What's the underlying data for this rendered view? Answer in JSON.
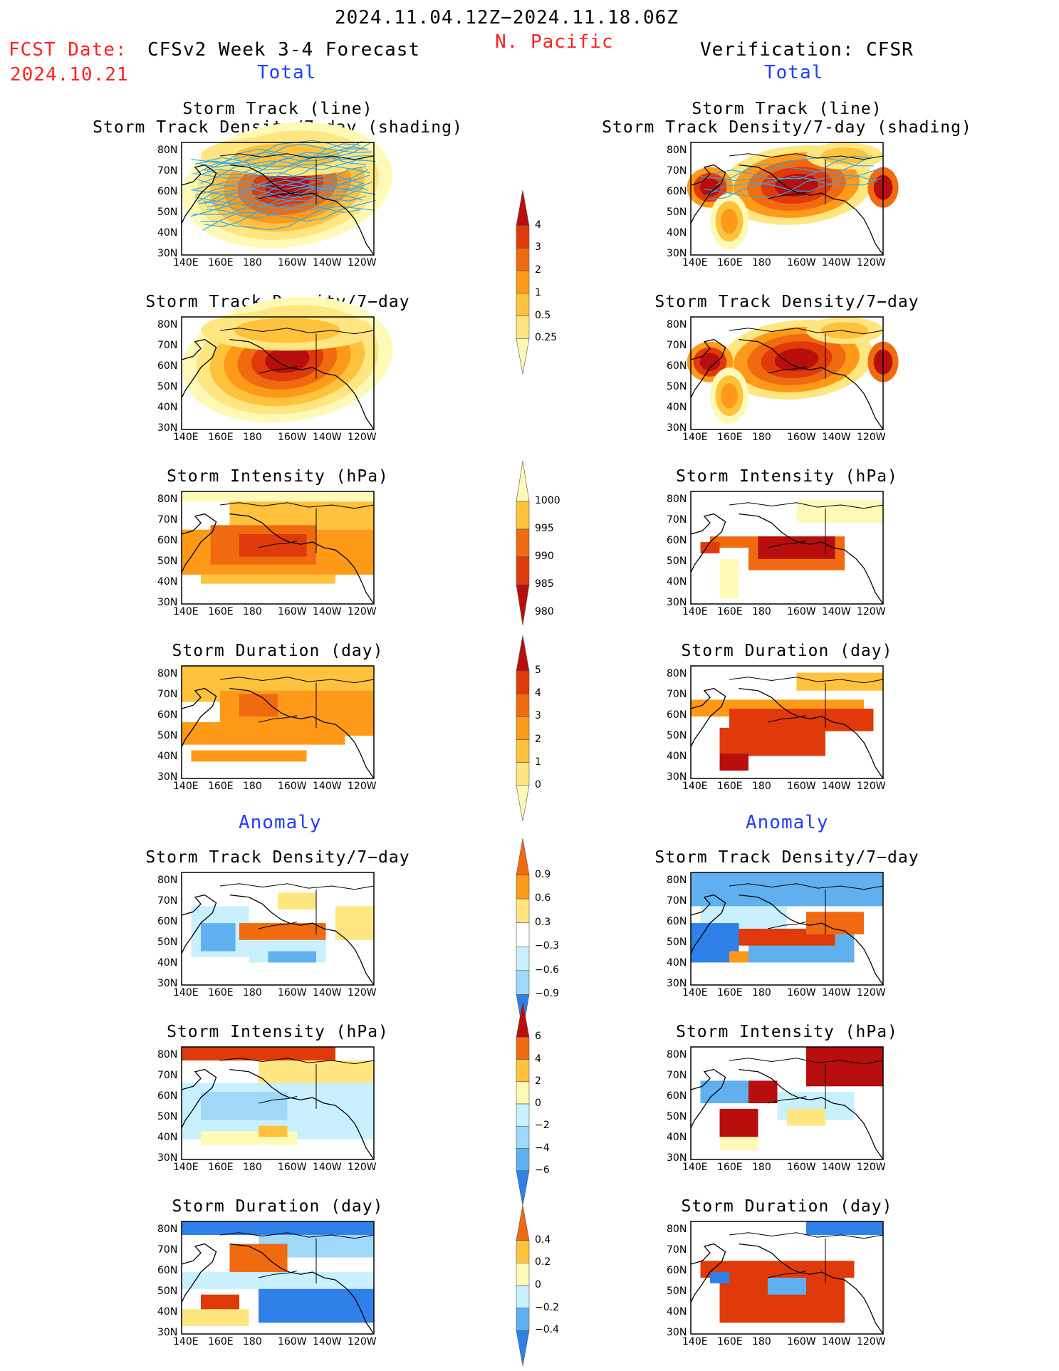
{
  "header": {
    "date_range": "2024.11.04.12Z−2024.11.18.06Z",
    "region": "N. Pacific",
    "fcst_label": "FCST Date:",
    "fcst_date": "2024.10.21",
    "left_title": "CFSv2 Week 3-4 Forecast",
    "right_title": "Verification: CFSR",
    "left_section_total": "Total",
    "right_section_total": "Total",
    "left_section_anomaly": "Anomaly",
    "right_section_anomaly": "Anomaly"
  },
  "panel_titles": {
    "track_line": "Storm Track (line)",
    "track_shading": "Storm Track Density/7-day (shading)",
    "density": "Storm Track Density/7−day",
    "intensity": "Storm Intensity (hPa)",
    "duration": "Storm Duration (day)"
  },
  "axes": {
    "lat_labels": [
      "80N",
      "70N",
      "60N",
      "50N",
      "40N",
      "30N"
    ],
    "lon_labels": [
      "140E",
      "160E",
      "180",
      "160W",
      "140W",
      "120W"
    ]
  },
  "colorbars": {
    "density_total": [
      "4",
      "3",
      "2",
      "1",
      "0.5",
      "0.25"
    ],
    "intensity_total": [
      "1000",
      "995",
      "990",
      "985",
      "980"
    ],
    "duration_total": [
      "5",
      "4",
      "3",
      "2",
      "1",
      "0"
    ],
    "density_anom": [
      "0.9",
      "0.6",
      "0.3",
      "−0.3",
      "−0.6",
      "−0.9"
    ],
    "intensity_anom": [
      "6",
      "4",
      "2",
      "0",
      "−2",
      "−4",
      "−6"
    ],
    "duration_anom": [
      "0.4",
      "0.2",
      "0",
      "−0.2",
      "−0.4"
    ]
  },
  "colors": {
    "warm": [
      "#fff9b8",
      "#ffe680",
      "#ffc23c",
      "#ff9a18",
      "#f06a10",
      "#e03a0a",
      "#b80e0e"
    ],
    "cool": [
      "#c8f0ff",
      "#9fd8f8",
      "#60b0f0",
      "#2f80e8",
      "#1050d0"
    ],
    "track_line": "#38a8e8"
  }
}
